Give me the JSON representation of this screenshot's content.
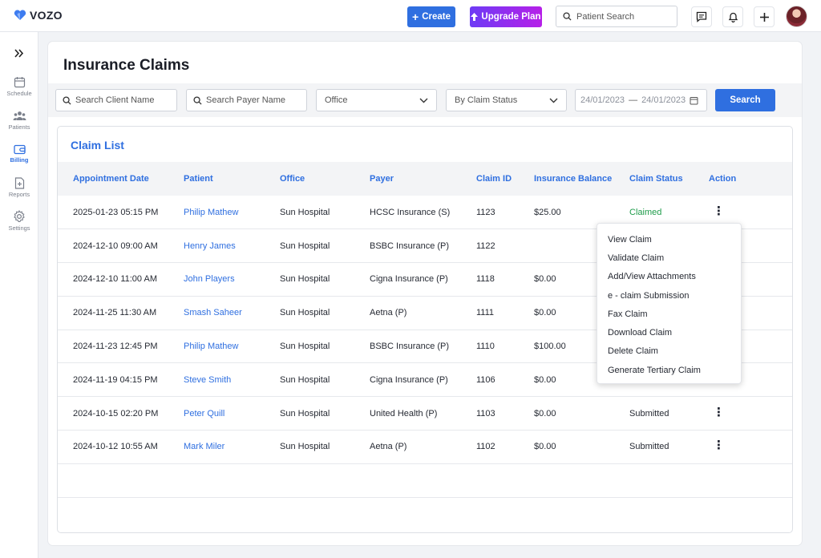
{
  "brand": {
    "name": "VOZO"
  },
  "topbar": {
    "create_label": "Create",
    "upgrade_label": "Upgrade Plan",
    "patient_search_placeholder": "Patient Search"
  },
  "sidebar": {
    "items": [
      {
        "label": "Schedule",
        "icon": "calendar-icon"
      },
      {
        "label": "Patients",
        "icon": "users-icon"
      },
      {
        "label": "Billing",
        "icon": "wallet-icon",
        "active": true
      },
      {
        "label": "Reports",
        "icon": "report-icon"
      },
      {
        "label": "Settings",
        "icon": "gear-icon"
      }
    ]
  },
  "page": {
    "title": "Insurance Claims"
  },
  "filters": {
    "client_placeholder": "Search Client Name",
    "payer_placeholder": "Search Payer Name",
    "office_value": "Office",
    "status_value": "By Claim Status",
    "date_from": "24/01/2023",
    "date_sep": "—",
    "date_to": "24/01/2023",
    "search_label": "Search"
  },
  "claim_list": {
    "title": "Claim List",
    "columns": [
      "Appointment Date",
      "Patient",
      "Office",
      "Payer",
      "Claim ID",
      "Insurance Balance",
      "Claim Status",
      "Action"
    ],
    "rows": [
      {
        "date": "2025-01-23 05:15 PM",
        "patient": "Philip Mathew",
        "office": "Sun Hospital",
        "payer": "HCSC Insurance (S)",
        "claim_id": "1123",
        "balance": "$25.00",
        "status": "Claimed"
      },
      {
        "date": "2024-12-10 09:00 AM",
        "patient": "Henry James",
        "office": "Sun Hospital",
        "payer": "BSBC Insurance (P)",
        "claim_id": "1122",
        "balance": "",
        "status": ""
      },
      {
        "date": "2024-12-10 11:00 AM",
        "patient": "John Players",
        "office": "Sun Hospital",
        "payer": "Cigna Insurance (P)",
        "claim_id": "1118",
        "balance": "$0.00",
        "status": ""
      },
      {
        "date": "2024-11-25 11:30 AM",
        "patient": "Smash Saheer",
        "office": "Sun Hospital",
        "payer": "Aetna (P)",
        "claim_id": "1111",
        "balance": "$0.00",
        "status": ""
      },
      {
        "date": "2024-11-23 12:45 PM",
        "patient": "Philip Mathew",
        "office": "Sun Hospital",
        "payer": "BSBC Insurance (P)",
        "claim_id": "1110",
        "balance": "$100.00",
        "status": ""
      },
      {
        "date": "2024-11-19 04:15 PM",
        "patient": "Steve Smith",
        "office": "Sun Hospital",
        "payer": "Cigna Insurance (P)",
        "claim_id": "1106",
        "balance": "$0.00",
        "status": ""
      },
      {
        "date": "2024-10-15 02:20 PM",
        "patient": "Peter Quill",
        "office": "Sun Hospital",
        "payer": "United Health (P)",
        "claim_id": "1103",
        "balance": "$0.00",
        "status": "Submitted"
      },
      {
        "date": "2024-10-12 10:55 AM",
        "patient": "Mark Miler",
        "office": "Sun Hospital",
        "payer": "Aetna (P)",
        "claim_id": "1102",
        "balance": "$0.00",
        "status": "Submitted"
      }
    ]
  },
  "action_menu": {
    "items": [
      "View Claim",
      "Validate Claim",
      "Add/View Attachments",
      "e - claim Submission",
      "Fax Claim",
      "Download Claim",
      "Delete Claim",
      "Generate Tertiary Claim"
    ]
  },
  "colors": {
    "accent": "#2f6fe0",
    "claimed": "#1e9b4a",
    "upgrade_from": "#6d3bf5",
    "upgrade_to": "#b620e8"
  }
}
